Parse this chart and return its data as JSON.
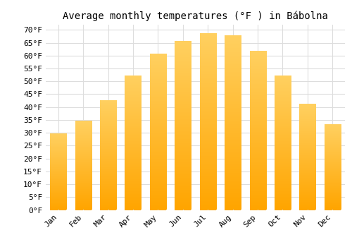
{
  "title": "Average monthly temperatures (°F ) in Bábolna",
  "months": [
    "Jan",
    "Feb",
    "Mar",
    "Apr",
    "May",
    "Jun",
    "Jul",
    "Aug",
    "Sep",
    "Oct",
    "Nov",
    "Dec"
  ],
  "values": [
    29.5,
    34.5,
    42.5,
    52.0,
    60.5,
    65.5,
    68.5,
    67.5,
    61.5,
    52.0,
    41.0,
    33.0
  ],
  "bar_color_bottom": "#FFA500",
  "bar_color_top": "#FFD060",
  "background_color": "#FFFFFF",
  "grid_color": "#DDDDDD",
  "ylim": [
    0,
    72
  ],
  "yticks": [
    0,
    5,
    10,
    15,
    20,
    25,
    30,
    35,
    40,
    45,
    50,
    55,
    60,
    65,
    70
  ],
  "title_fontsize": 10,
  "tick_fontsize": 8,
  "font_family": "monospace"
}
